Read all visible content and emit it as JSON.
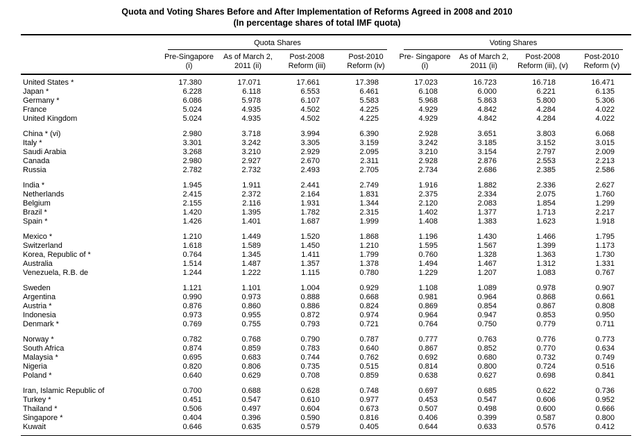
{
  "page": {
    "title": "Quota and Voting Shares Before and After Implementation of Reforms Agreed in 2008 and 2010",
    "subtitle": "(In percentage shares of total IMF quota)"
  },
  "colors": {
    "background": "#ffffff",
    "text": "#000000",
    "rule": "#000000"
  },
  "table": {
    "group_headers": [
      {
        "label": "Quota Shares"
      },
      {
        "label": "Voting Shares"
      }
    ],
    "columns": [
      {
        "line1": "Pre-Singapore",
        "line2": "(i)"
      },
      {
        "line1": "As of March 2,",
        "line2": "2011 (ii)"
      },
      {
        "line1": "Post-2008",
        "line2": "Reform (iii)"
      },
      {
        "line1": "Post-2010",
        "line2": "Reform (iv)"
      },
      {
        "line1": "Pre- Singapore",
        "line2": "(i)"
      },
      {
        "line1": "As of March 2,",
        "line2": "2011 (ii)"
      },
      {
        "line1": "Post-2008",
        "line2": "Reform (iii), (v)"
      },
      {
        "line1": "Post-2010",
        "line2": "Reform (v)"
      }
    ],
    "groups": [
      {
        "rows": [
          {
            "country": "United States *",
            "values": [
              "17.380",
              "17.071",
              "17.661",
              "17.398",
              "17.023",
              "16.723",
              "16.718",
              "16.471"
            ]
          },
          {
            "country": "Japan *",
            "values": [
              "6.228",
              "6.118",
              "6.553",
              "6.461",
              "6.108",
              "6.000",
              "6.221",
              "6.135"
            ]
          },
          {
            "country": "Germany *",
            "values": [
              "6.086",
              "5.978",
              "6.107",
              "5.583",
              "5.968",
              "5.863",
              "5.800",
              "5.306"
            ]
          },
          {
            "country": "France",
            "values": [
              "5.024",
              "4.935",
              "4.502",
              "4.225",
              "4.929",
              "4.842",
              "4.284",
              "4.022"
            ]
          },
          {
            "country": "United Kingdom",
            "values": [
              "5.024",
              "4.935",
              "4.502",
              "4.225",
              "4.929",
              "4.842",
              "4.284",
              "4.022"
            ]
          }
        ]
      },
      {
        "rows": [
          {
            "country": "China * (vi)",
            "values": [
              "2.980",
              "3.718",
              "3.994",
              "6.390",
              "2.928",
              "3.651",
              "3.803",
              "6.068"
            ]
          },
          {
            "country": "Italy *",
            "values": [
              "3.301",
              "3.242",
              "3.305",
              "3.159",
              "3.242",
              "3.185",
              "3.152",
              "3.015"
            ]
          },
          {
            "country": "Saudi Arabia",
            "values": [
              "3.268",
              "3.210",
              "2.929",
              "2.095",
              "3.210",
              "3.154",
              "2.797",
              "2.009"
            ]
          },
          {
            "country": "Canada",
            "values": [
              "2.980",
              "2.927",
              "2.670",
              "2.311",
              "2.928",
              "2.876",
              "2.553",
              "2.213"
            ]
          },
          {
            "country": "Russia",
            "values": [
              "2.782",
              "2.732",
              "2.493",
              "2.705",
              "2.734",
              "2.686",
              "2.385",
              "2.586"
            ]
          }
        ]
      },
      {
        "rows": [
          {
            "country": "India *",
            "values": [
              "1.945",
              "1.911",
              "2.441",
              "2.749",
              "1.916",
              "1.882",
              "2.336",
              "2.627"
            ]
          },
          {
            "country": "Netherlands",
            "values": [
              "2.415",
              "2.372",
              "2.164",
              "1.831",
              "2.375",
              "2.334",
              "2.075",
              "1.760"
            ]
          },
          {
            "country": "Belgium",
            "values": [
              "2.155",
              "2.116",
              "1.931",
              "1.344",
              "2.120",
              "2.083",
              "1.854",
              "1.299"
            ]
          },
          {
            "country": "Brazil *",
            "values": [
              "1.420",
              "1.395",
              "1.782",
              "2.315",
              "1.402",
              "1.377",
              "1.713",
              "2.217"
            ]
          },
          {
            "country": "Spain *",
            "values": [
              "1.426",
              "1.401",
              "1.687",
              "1.999",
              "1.408",
              "1.383",
              "1.623",
              "1.918"
            ]
          }
        ]
      },
      {
        "rows": [
          {
            "country": "Mexico *",
            "values": [
              "1.210",
              "1.449",
              "1.520",
              "1.868",
              "1.196",
              "1.430",
              "1.466",
              "1.795"
            ]
          },
          {
            "country": "Switzerland",
            "values": [
              "1.618",
              "1.589",
              "1.450",
              "1.210",
              "1.595",
              "1.567",
              "1.399",
              "1.173"
            ]
          },
          {
            "country": "Korea, Republic of *",
            "values": [
              "0.764",
              "1.345",
              "1.411",
              "1.799",
              "0.760",
              "1.328",
              "1.363",
              "1.730"
            ]
          },
          {
            "country": "Australia",
            "values": [
              "1.514",
              "1.487",
              "1.357",
              "1.378",
              "1.494",
              "1.467",
              "1.312",
              "1.331"
            ]
          },
          {
            "country": "Venezuela, R.B. de",
            "values": [
              "1.244",
              "1.222",
              "1.115",
              "0.780",
              "1.229",
              "1.207",
              "1.083",
              "0.767"
            ]
          }
        ]
      },
      {
        "rows": [
          {
            "country": "Sweden",
            "values": [
              "1.121",
              "1.101",
              "1.004",
              "0.929",
              "1.108",
              "1.089",
              "0.978",
              "0.907"
            ]
          },
          {
            "country": "Argentina",
            "values": [
              "0.990",
              "0.973",
              "0.888",
              "0.668",
              "0.981",
              "0.964",
              "0.868",
              "0.661"
            ]
          },
          {
            "country": "Austria *",
            "values": [
              "0.876",
              "0.860",
              "0.886",
              "0.824",
              "0.869",
              "0.854",
              "0.867",
              "0.808"
            ]
          },
          {
            "country": "Indonesia",
            "values": [
              "0.973",
              "0.955",
              "0.872",
              "0.974",
              "0.964",
              "0.947",
              "0.853",
              "0.950"
            ]
          },
          {
            "country": "Denmark *",
            "values": [
              "0.769",
              "0.755",
              "0.793",
              "0.721",
              "0.764",
              "0.750",
              "0.779",
              "0.711"
            ]
          }
        ]
      },
      {
        "rows": [
          {
            "country": "Norway *",
            "values": [
              "0.782",
              "0.768",
              "0.790",
              "0.787",
              "0.777",
              "0.763",
              "0.776",
              "0.773"
            ]
          },
          {
            "country": "South Africa",
            "values": [
              "0.874",
              "0.859",
              "0.783",
              "0.640",
              "0.867",
              "0.852",
              "0.770",
              "0.634"
            ]
          },
          {
            "country": "Malaysia *",
            "values": [
              "0.695",
              "0.683",
              "0.744",
              "0.762",
              "0.692",
              "0.680",
              "0.732",
              "0.749"
            ]
          },
          {
            "country": "Nigeria",
            "values": [
              "0.820",
              "0.806",
              "0.735",
              "0.515",
              "0.814",
              "0.800",
              "0.724",
              "0.516"
            ]
          },
          {
            "country": "Poland *",
            "values": [
              "0.640",
              "0.629",
              "0.708",
              "0.859",
              "0.638",
              "0.627",
              "0.698",
              "0.841"
            ]
          }
        ]
      },
      {
        "rows": [
          {
            "country": "Iran, Islamic Republic of",
            "values": [
              "0.700",
              "0.688",
              "0.628",
              "0.748",
              "0.697",
              "0.685",
              "0.622",
              "0.736"
            ]
          },
          {
            "country": "Turkey *",
            "values": [
              "0.451",
              "0.547",
              "0.610",
              "0.977",
              "0.453",
              "0.547",
              "0.606",
              "0.952"
            ]
          },
          {
            "country": "Thailand *",
            "values": [
              "0.506",
              "0.497",
              "0.604",
              "0.673",
              "0.507",
              "0.498",
              "0.600",
              "0.666"
            ]
          },
          {
            "country": "Singapore *",
            "values": [
              "0.404",
              "0.396",
              "0.590",
              "0.816",
              "0.406",
              "0.399",
              "0.587",
              "0.800"
            ]
          },
          {
            "country": "Kuwait",
            "values": [
              "0.646",
              "0.635",
              "0.579",
              "0.405",
              "0.644",
              "0.633",
              "0.576",
              "0.412"
            ]
          }
        ]
      }
    ]
  }
}
